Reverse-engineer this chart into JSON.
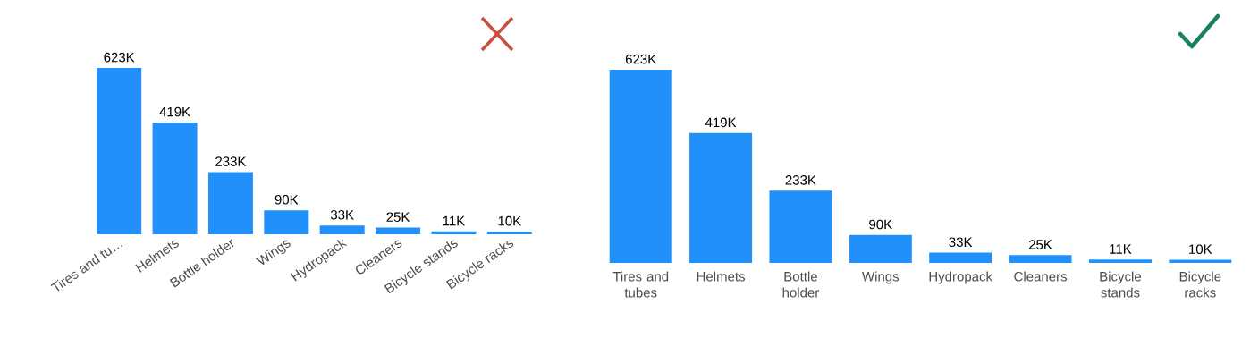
{
  "chart_data": [
    {
      "type": "bar",
      "categories": [
        "Tires and tu…",
        "Helmets",
        "Bottle holder",
        "Wings",
        "Hydropack",
        "Cleaners",
        "Bicycle stands",
        "Bicycle racks"
      ],
      "values": [
        623000,
        419000,
        233000,
        90000,
        33000,
        25000,
        11000,
        10000
      ],
      "value_labels": [
        "623K",
        "419K",
        "233K",
        "90K",
        "33K",
        "25K",
        "11K",
        "10K"
      ],
      "color": "#2190fb"
    },
    {
      "type": "bar",
      "categories": [
        "Tires and tubes",
        "Helmets",
        "Bottle holder",
        "Wings",
        "Hydropack",
        "Cleaners",
        "Bicycle stands",
        "Bicycle racks"
      ],
      "values": [
        623000,
        419000,
        233000,
        90000,
        33000,
        25000,
        11000,
        10000
      ],
      "value_labels": [
        "623K",
        "419K",
        "233K",
        "90K",
        "33K",
        "25K",
        "11K",
        "10K"
      ],
      "color": "#2190fb"
    }
  ]
}
